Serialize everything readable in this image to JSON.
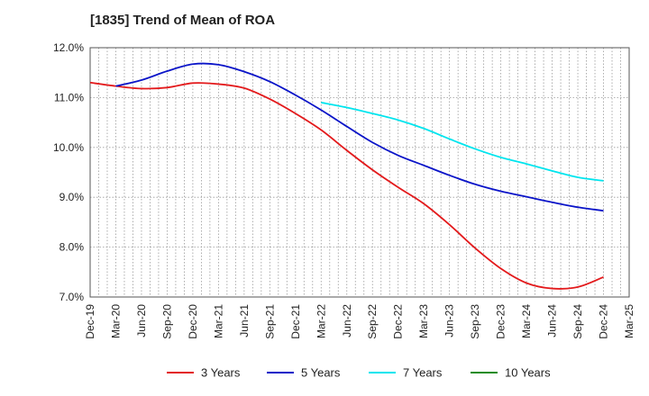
{
  "chart_data": {
    "type": "line",
    "title": "[1835]  Trend of Mean of ROA",
    "xlabel": "",
    "ylabel": "",
    "ylim": [
      7.0,
      12.0
    ],
    "yticks": [
      7.0,
      8.0,
      9.0,
      10.0,
      11.0,
      12.0
    ],
    "ytick_labels": [
      "7.0%",
      "8.0%",
      "9.0%",
      "10.0%",
      "11.0%",
      "12.0%"
    ],
    "categories": [
      "Dec-19",
      "Mar-20",
      "Jun-20",
      "Sep-20",
      "Dec-20",
      "Mar-21",
      "Jun-21",
      "Sep-21",
      "Dec-21",
      "Mar-22",
      "Jun-22",
      "Sep-22",
      "Dec-22",
      "Mar-23",
      "Jun-23",
      "Sep-23",
      "Dec-23",
      "Mar-24",
      "Jun-24",
      "Sep-24",
      "Dec-24",
      "Mar-25"
    ],
    "grid": true,
    "legend_position": "bottom",
    "series": [
      {
        "name": "3 Years",
        "color": "#e31a1c",
        "values": [
          11.3,
          11.23,
          11.18,
          11.2,
          11.29,
          11.27,
          11.19,
          10.97,
          10.68,
          10.35,
          9.94,
          9.55,
          9.2,
          8.87,
          8.45,
          7.98,
          7.57,
          7.28,
          7.17,
          7.2,
          7.4,
          null
        ]
      },
      {
        "name": "5 Years",
        "color": "#0a14c8",
        "values": [
          null,
          11.23,
          11.35,
          11.53,
          11.67,
          11.66,
          11.52,
          11.32,
          11.05,
          10.75,
          10.42,
          10.1,
          9.84,
          9.64,
          9.44,
          9.26,
          9.12,
          9.01,
          8.9,
          8.8,
          8.73,
          null
        ]
      },
      {
        "name": "7 Years",
        "color": "#00e5ee",
        "values": [
          null,
          null,
          null,
          null,
          null,
          null,
          null,
          null,
          null,
          10.9,
          10.8,
          10.68,
          10.55,
          10.38,
          10.17,
          9.97,
          9.8,
          9.67,
          9.53,
          9.4,
          9.33,
          null
        ]
      },
      {
        "name": "10 Years",
        "color": "#1a8c1a",
        "values": [
          null,
          null,
          null,
          null,
          null,
          null,
          null,
          null,
          null,
          null,
          null,
          null,
          null,
          null,
          null,
          null,
          null,
          null,
          null,
          null,
          null,
          null
        ]
      }
    ]
  }
}
